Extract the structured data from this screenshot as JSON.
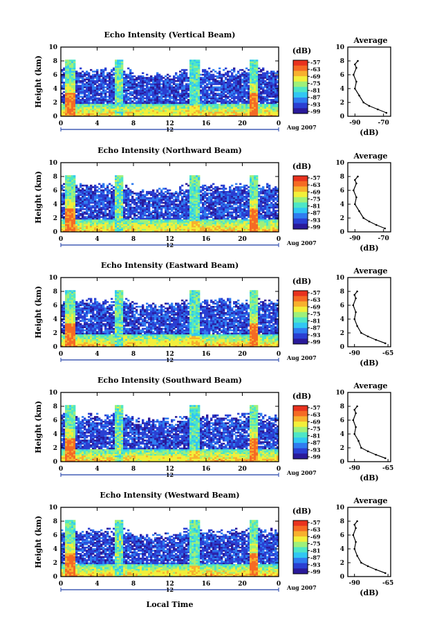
{
  "page": {
    "local_time_label": "Local Time",
    "date_label": "Aug 2007",
    "colorbar_unit": "(dB)",
    "colorbar_ticks": [
      "-57",
      "-63",
      "-69",
      "-75",
      "-81",
      "-87",
      "-93",
      "-99"
    ],
    "height_label": "Height (km)",
    "average_title": "Average",
    "average_xlabel": "(dB)",
    "x_ticks": [
      "0",
      "4",
      "8",
      "12",
      "16",
      "20",
      "0"
    ],
    "x_ticks_num": [
      0,
      4,
      8,
      12,
      16,
      20,
      24
    ],
    "date_mid_label": "12",
    "y_ticks": [
      "0",
      "2",
      "4",
      "6",
      "8",
      "10"
    ],
    "colors": {
      "colormap": [
        "#2a1a9a",
        "#2a3fd2",
        "#2f7cf0",
        "#31c7f2",
        "#4ee6c6",
        "#9ef07a",
        "#f2ef3a",
        "#f7b02e",
        "#f56a24",
        "#e8321e"
      ],
      "axis": "#000000",
      "date_line": "#1f3fa8"
    }
  },
  "chart_data": [
    {
      "type": "heatmap",
      "title": "Echo Intensity (Vertical Beam)",
      "xlabel": "",
      "ylabel": "Height (km)",
      "xlim": [
        0,
        24
      ],
      "ylim": [
        0,
        10
      ],
      "zlim": [
        -99,
        -57
      ],
      "zunit": "dB",
      "rain_intervals_h": [
        [
          0.5,
          1.5
        ],
        [
          6.0,
          6.8
        ],
        [
          14.2,
          15.4
        ],
        [
          20.8,
          21.6
        ]
      ],
      "echo_top_km": 6.5,
      "average_profile": {
        "title": "Average",
        "xlabel": "(dB)",
        "x_ticks": [
          "-90",
          "-70"
        ],
        "xlim": [
          -95,
          -65
        ],
        "height_km": [
          0.5,
          1,
          1.5,
          2,
          3,
          4,
          5,
          6,
          7,
          7.5,
          8
        ],
        "db": [
          -68,
          -74,
          -80,
          -84,
          -87,
          -90,
          -89,
          -91,
          -89,
          -90,
          -88
        ]
      }
    },
    {
      "type": "heatmap",
      "title": "Echo Intensity (Northward Beam)",
      "xlabel": "",
      "ylabel": "Height (km)",
      "xlim": [
        0,
        24
      ],
      "ylim": [
        0,
        10
      ],
      "zlim": [
        -99,
        -57
      ],
      "zunit": "dB",
      "rain_intervals_h": [
        [
          0.5,
          1.5
        ],
        [
          6.0,
          6.8
        ],
        [
          14.2,
          15.4
        ],
        [
          20.8,
          21.6
        ]
      ],
      "echo_top_km": 6.5,
      "average_profile": {
        "title": "Average",
        "xlabel": "(dB)",
        "x_ticks": [
          "-90",
          "-70"
        ],
        "xlim": [
          -95,
          -65
        ],
        "height_km": [
          0.5,
          1,
          1.5,
          2,
          3,
          4,
          5,
          6,
          7,
          7.5,
          8
        ],
        "db": [
          -69,
          -75,
          -80,
          -84,
          -87,
          -90,
          -89,
          -91,
          -89,
          -90,
          -88
        ]
      }
    },
    {
      "type": "heatmap",
      "title": "Echo Intensity (Eastward Beam)",
      "xlabel": "",
      "ylabel": "Height (km)",
      "xlim": [
        0,
        24
      ],
      "ylim": [
        0,
        10
      ],
      "zlim": [
        -99,
        -57
      ],
      "zunit": "dB",
      "rain_intervals_h": [
        [
          0.5,
          1.5
        ],
        [
          6.0,
          6.8
        ],
        [
          14.2,
          15.4
        ],
        [
          20.8,
          21.6
        ]
      ],
      "echo_top_km": 6.5,
      "average_profile": {
        "title": "Average",
        "xlabel": "(dB)",
        "x_ticks": [
          "-90",
          "-65"
        ],
        "xlim": [
          -95,
          -63
        ],
        "height_km": [
          0.5,
          1,
          1.5,
          2,
          3,
          4,
          5,
          6,
          7,
          7.5,
          8
        ],
        "db": [
          -67,
          -74,
          -80,
          -85,
          -88,
          -90,
          -89,
          -91,
          -89,
          -90,
          -88
        ]
      }
    },
    {
      "type": "heatmap",
      "title": "Echo Intensity (Southward Beam)",
      "xlabel": "",
      "ylabel": "Height (km)",
      "xlim": [
        0,
        24
      ],
      "ylim": [
        0,
        10
      ],
      "zlim": [
        -99,
        -57
      ],
      "zunit": "dB",
      "rain_intervals_h": [
        [
          0.5,
          1.5
        ],
        [
          6.0,
          6.8
        ],
        [
          14.2,
          15.4
        ],
        [
          20.8,
          21.6
        ]
      ],
      "echo_top_km": 6.5,
      "average_profile": {
        "title": "Average",
        "xlabel": "(dB)",
        "x_ticks": [
          "-90",
          "-65"
        ],
        "xlim": [
          -95,
          -63
        ],
        "height_km": [
          0.5,
          1,
          1.5,
          2,
          3,
          4,
          5,
          6,
          7,
          7.5,
          8
        ],
        "db": [
          -67,
          -74,
          -80,
          -85,
          -87,
          -90,
          -89,
          -91,
          -89,
          -90,
          -88
        ]
      }
    },
    {
      "type": "heatmap",
      "title": "Echo Intensity (Westward Beam)",
      "xlabel": "Local Time",
      "ylabel": "Height (km)",
      "xlim": [
        0,
        24
      ],
      "ylim": [
        0,
        10
      ],
      "zlim": [
        -99,
        -57
      ],
      "zunit": "dB",
      "rain_intervals_h": [
        [
          0.5,
          1.5
        ],
        [
          6.0,
          6.8
        ],
        [
          14.2,
          15.4
        ],
        [
          20.8,
          21.6
        ]
      ],
      "echo_top_km": 6.5,
      "average_profile": {
        "title": "Average",
        "xlabel": "(dB)",
        "x_ticks": [
          "-90",
          "-65"
        ],
        "xlim": [
          -95,
          -63
        ],
        "height_km": [
          0.5,
          1,
          1.5,
          2,
          3,
          4,
          5,
          6,
          7,
          7.5,
          8
        ],
        "db": [
          -67,
          -74,
          -80,
          -85,
          -88,
          -90,
          -89,
          -91,
          -89,
          -90,
          -88
        ]
      }
    }
  ]
}
